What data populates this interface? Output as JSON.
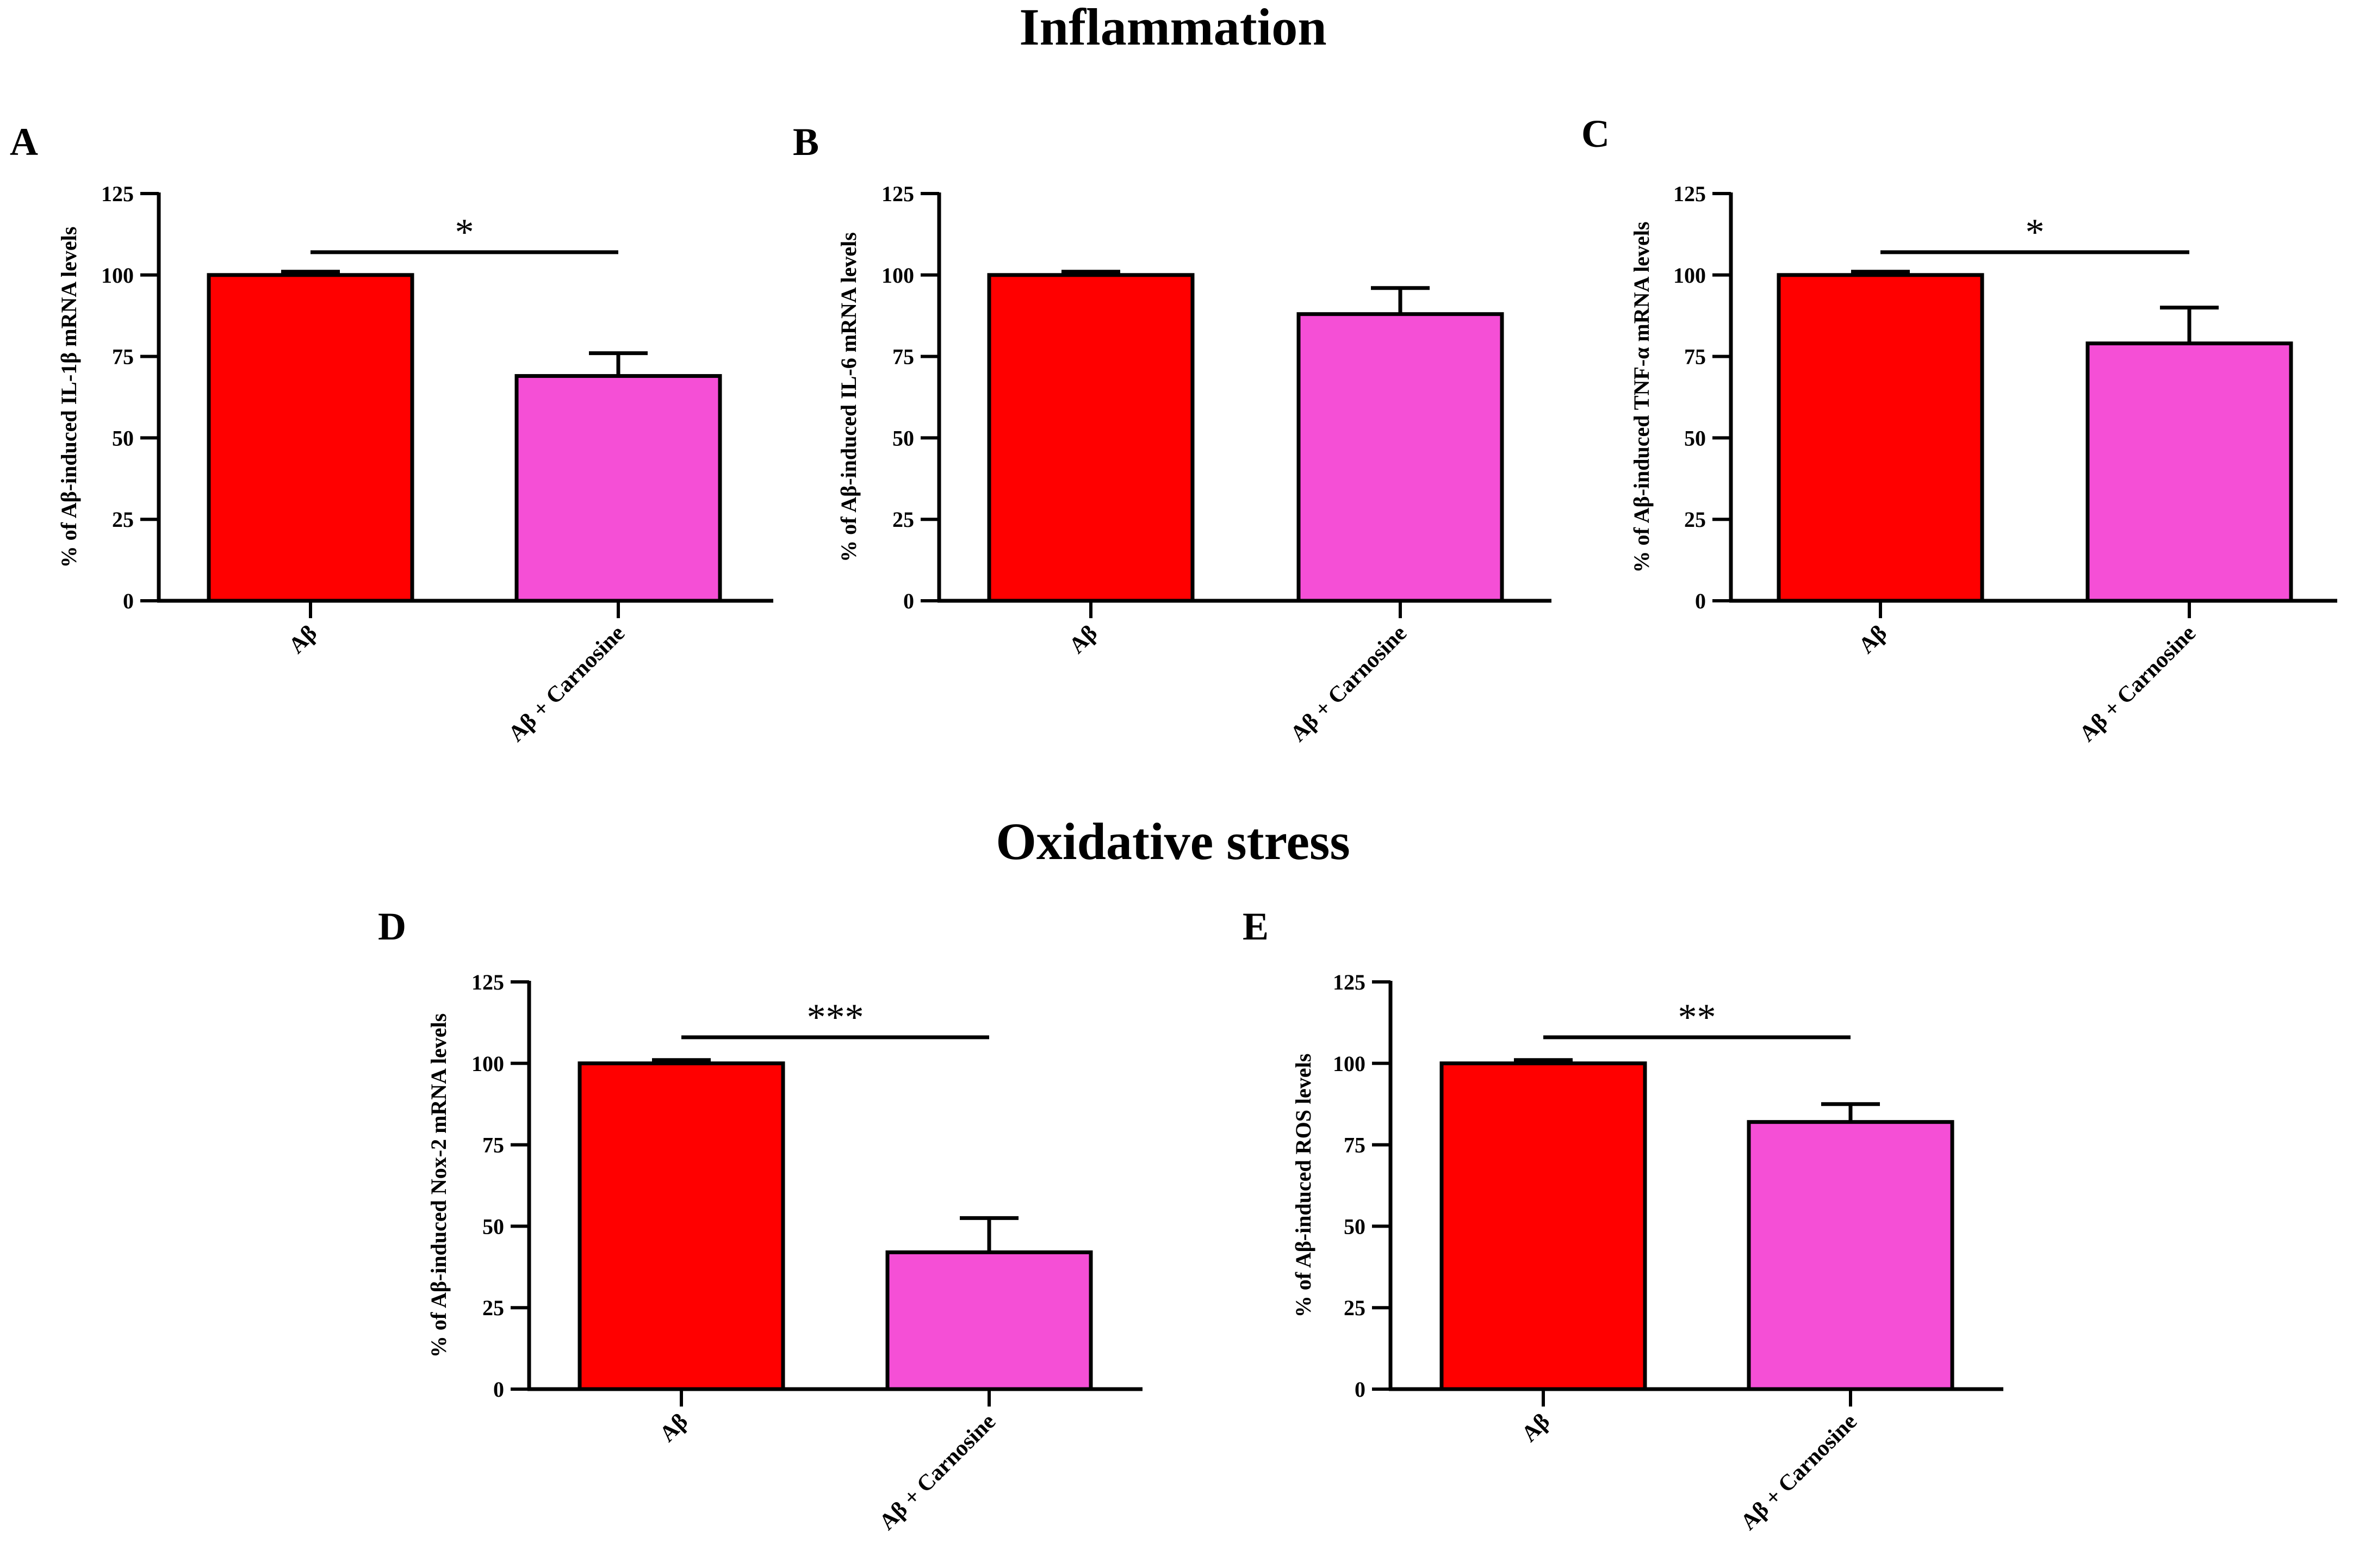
{
  "sections": [
    {
      "title": "Inflammation"
    },
    {
      "title": "Oxidative stress"
    }
  ],
  "colors": {
    "bar1": "#ff0000",
    "bar2": "#f54fd6",
    "stroke": "#000000"
  },
  "chart_data": [
    {
      "type": "bar",
      "panel": "A",
      "title": "",
      "ylabel": "% of Aβ-induced IL-1β  mRNA levels",
      "categories": [
        "Aβ",
        "Aβ + Carnosine"
      ],
      "values": [
        100,
        69
      ],
      "errors": [
        1,
        7
      ],
      "ylim": [
        0,
        125
      ],
      "yticks": [
        "0",
        "25",
        "50",
        "75",
        "100",
        "125"
      ],
      "significance": {
        "label": "*",
        "y": 107
      }
    },
    {
      "type": "bar",
      "panel": "B",
      "title": "",
      "ylabel": "% of Aβ-induced IL-6 mRNA levels",
      "categories": [
        "Aβ",
        "Aβ + Carnosine"
      ],
      "values": [
        100,
        88
      ],
      "errors": [
        1,
        8
      ],
      "ylim": [
        0,
        125
      ],
      "yticks": [
        "0",
        "25",
        "50",
        "75",
        "100",
        "125"
      ],
      "significance": null
    },
    {
      "type": "bar",
      "panel": "C",
      "title": "",
      "ylabel": "% of Aβ-induced TNF-α mRNA levels",
      "categories": [
        "Aβ",
        "Aβ + Carnosine"
      ],
      "values": [
        100,
        79
      ],
      "errors": [
        1,
        11
      ],
      "ylim": [
        0,
        125
      ],
      "yticks": [
        "0",
        "25",
        "50",
        "75",
        "100",
        "125"
      ],
      "significance": {
        "label": "*",
        "y": 107
      }
    },
    {
      "type": "bar",
      "panel": "D",
      "title": "",
      "ylabel": "% of Aβ-induced Nox-2 mRNA levels",
      "categories": [
        "Aβ",
        "Aβ + Carnosine"
      ],
      "values": [
        100,
        42
      ],
      "errors": [
        1,
        10.5
      ],
      "ylim": [
        0,
        125
      ],
      "yticks": [
        "0",
        "25",
        "50",
        "75",
        "100",
        "125"
      ],
      "significance": {
        "label": "***",
        "y": 108
      }
    },
    {
      "type": "bar",
      "panel": "E",
      "title": "",
      "ylabel": "% of Aβ-induced ROS levels",
      "categories": [
        "Aβ",
        "Aβ + Carnosine"
      ],
      "values": [
        100,
        82
      ],
      "errors": [
        1,
        5.5
      ],
      "ylim": [
        0,
        125
      ],
      "yticks": [
        "0",
        "25",
        "50",
        "75",
        "100",
        "125"
      ],
      "significance": {
        "label": "**",
        "y": 108
      }
    }
  ]
}
